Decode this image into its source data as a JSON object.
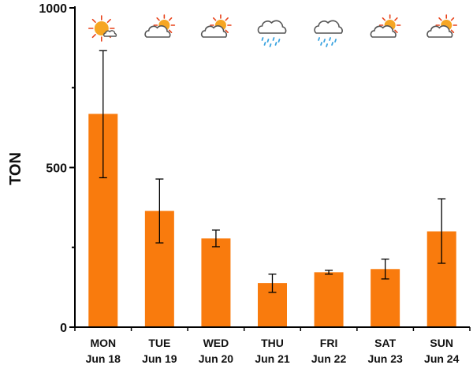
{
  "chart_data": {
    "type": "bar",
    "title": "",
    "xlabel": "",
    "ylabel": "TON",
    "ylim": [
      0,
      1000
    ],
    "yticks": [
      "0",
      "500",
      "1000"
    ],
    "categories": [
      {
        "day": "MON",
        "date": "Jun 18"
      },
      {
        "day": "TUE",
        "date": "Jun 19"
      },
      {
        "day": "WED",
        "date": "Jun 20"
      },
      {
        "day": "THU",
        "date": "Jun 21"
      },
      {
        "day": "FRI",
        "date": "Jun 22"
      },
      {
        "day": "SAT",
        "date": "Jun 23"
      },
      {
        "day": "SUN",
        "date": "Jun 24"
      }
    ],
    "values": [
      668,
      364,
      278,
      138,
      172,
      182,
      300
    ],
    "error_low": [
      468,
      264,
      252,
      109,
      166,
      151,
      200
    ],
    "error_high": [
      866,
      464,
      304,
      166,
      178,
      213,
      402
    ],
    "weather_icons": [
      "sun-icon",
      "sun-cloud-icon",
      "sun-cloud-icon",
      "rain-cloud-icon",
      "rain-cloud-icon",
      "sun-cloud-icon",
      "sun-cloud-icon"
    ],
    "colors": {
      "bar": "#f97b0d",
      "axis": "#000000",
      "error": "#000000",
      "sun": "#f6a623",
      "ray": "#e8421a",
      "cloud": "#555555",
      "rain": "#3aa3e0"
    }
  }
}
